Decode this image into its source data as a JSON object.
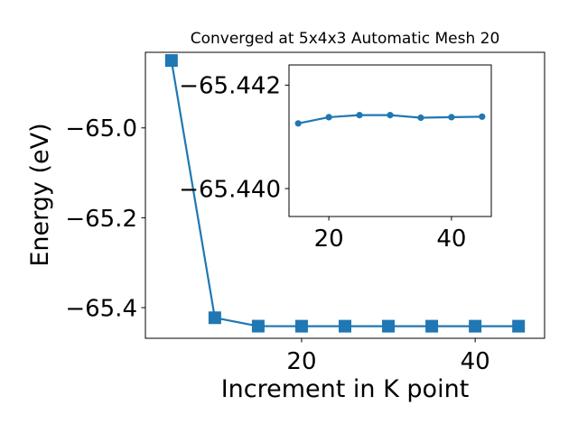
{
  "chart_data": [
    {
      "type": "line",
      "title": "Converged at 5x4x3 Automatic Mesh 20",
      "xlabel": "Increment in K point",
      "ylabel": "Energy (eV)",
      "xlim": [
        2.0,
        48.0
      ],
      "ylim": [
        -65.4682,
        -64.8318
      ],
      "grid": false,
      "x_ticks": [
        20,
        40
      ],
      "x_tick_labels": [
        "20",
        "40"
      ],
      "y_ticks": [
        -65.0,
        -65.2,
        -65.4
      ],
      "y_tick_labels": [
        "−65.0",
        "−65.2",
        "−65.4"
      ],
      "series": [
        {
          "marker": "square",
          "color": "#1f77b4",
          "x": [
            5,
            10,
            15,
            20,
            25,
            30,
            35,
            40,
            45
          ],
          "y": [
            -64.85,
            -65.4225,
            -65.4412,
            -65.4413,
            -65.4413,
            -65.4413,
            -65.4413,
            -65.4413,
            -65.4413
          ]
        }
      ]
    },
    {
      "type": "line",
      "title": "",
      "xlabel": "",
      "ylabel": "",
      "inset": true,
      "xlim": [
        13.5,
        46.5
      ],
      "ylim": [
        -65.43946,
        -65.44239
      ],
      "grid": false,
      "x_ticks": [
        20,
        40
      ],
      "x_tick_labels": [
        "20",
        "40"
      ],
      "y_ticks": [
        -65.442,
        -65.44
      ],
      "y_tick_labels": [
        "−65.442",
        "−65.440"
      ],
      "series": [
        {
          "marker": "circle",
          "color": "#1f77b4",
          "x": [
            15,
            20,
            25,
            30,
            35,
            40,
            45
          ],
          "y": [
            -65.44126,
            -65.44138,
            -65.44142,
            -65.44142,
            -65.44137,
            -65.44138,
            -65.44139
          ]
        }
      ]
    }
  ]
}
